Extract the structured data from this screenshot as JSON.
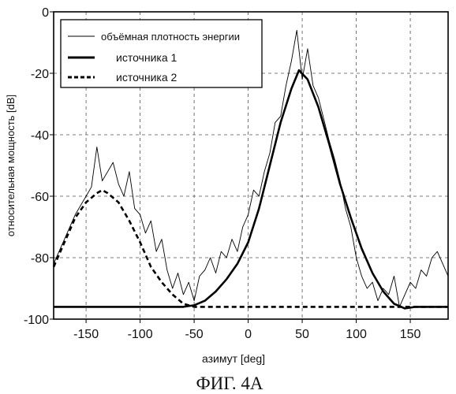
{
  "chart_data": {
    "type": "line",
    "caption": "ФИГ. 4А",
    "xlabel": "азимут [deg]",
    "ylabel": "относительная мощность [dB]",
    "xlim": [
      -180,
      185
    ],
    "ylim": [
      -100,
      0
    ],
    "xticks": [
      -150,
      -100,
      -50,
      0,
      50,
      100,
      150
    ],
    "yticks": [
      0,
      -20,
      -40,
      -60,
      -80,
      -100
    ],
    "grid": "dashed",
    "legend_position": "top-left",
    "series": [
      {
        "name": "объёмная плотность энергии",
        "style": "thin-solid",
        "x": [
          -180,
          -175,
          -170,
          -165,
          -160,
          -155,
          -150,
          -145,
          -140,
          -135,
          -130,
          -125,
          -120,
          -115,
          -110,
          -105,
          -100,
          -95,
          -90,
          -85,
          -80,
          -75,
          -70,
          -65,
          -60,
          -55,
          -50,
          -45,
          -40,
          -35,
          -30,
          -25,
          -20,
          -15,
          -10,
          -5,
          0,
          5,
          10,
          15,
          20,
          25,
          30,
          35,
          40,
          45,
          50,
          55,
          60,
          65,
          70,
          75,
          80,
          85,
          90,
          95,
          100,
          105,
          110,
          115,
          120,
          125,
          130,
          135,
          140,
          145,
          150,
          155,
          160,
          165,
          170,
          175,
          180,
          185
        ],
        "y": [
          -82,
          -78,
          -74,
          -70,
          -66,
          -63,
          -60,
          -57,
          -44,
          -55,
          -52,
          -49,
          -56,
          -60,
          -52,
          -64,
          -66,
          -72,
          -68,
          -78,
          -74,
          -84,
          -90,
          -85,
          -92,
          -88,
          -94,
          -86,
          -84,
          -80,
          -85,
          -78,
          -80,
          -74,
          -78,
          -70,
          -66,
          -58,
          -60,
          -52,
          -46,
          -36,
          -34,
          -24,
          -16,
          -6,
          -22,
          -12,
          -24,
          -28,
          -35,
          -42,
          -48,
          -55,
          -64,
          -70,
          -80,
          -86,
          -90,
          -88,
          -94,
          -90,
          -92,
          -86,
          -96,
          -92,
          -88,
          -90,
          -84,
          -86,
          -80,
          -78,
          -82,
          -86
        ]
      },
      {
        "name": "источника 1",
        "style": "thick-solid",
        "x": [
          -180,
          -120,
          -90,
          -70,
          -60,
          -50,
          -40,
          -30,
          -20,
          -10,
          0,
          10,
          20,
          30,
          40,
          47,
          55,
          65,
          75,
          85,
          95,
          105,
          115,
          125,
          135,
          145,
          155,
          170,
          185
        ],
        "y": [
          -96,
          -96,
          -96,
          -96,
          -96,
          -95.5,
          -94,
          -91,
          -87,
          -82,
          -75,
          -64,
          -50,
          -36,
          -25,
          -19,
          -22,
          -31,
          -43,
          -56,
          -67,
          -77,
          -85,
          -91,
          -95,
          -96.5,
          -96,
          -96,
          -96
        ]
      },
      {
        "name": "источника 2",
        "style": "thick-dashed",
        "x": [
          -180,
          -170,
          -160,
          -150,
          -140,
          -135,
          -130,
          -120,
          -110,
          -100,
          -90,
          -80,
          -70,
          -60,
          -50,
          -40,
          -20,
          0,
          50,
          100,
          150,
          185
        ],
        "y": [
          -83,
          -75,
          -67,
          -62,
          -59,
          -58,
          -59,
          -62,
          -68,
          -75,
          -83,
          -88,
          -92,
          -95,
          -96,
          -96,
          -96,
          -96,
          -96,
          -96,
          -96,
          -96
        ]
      }
    ]
  }
}
